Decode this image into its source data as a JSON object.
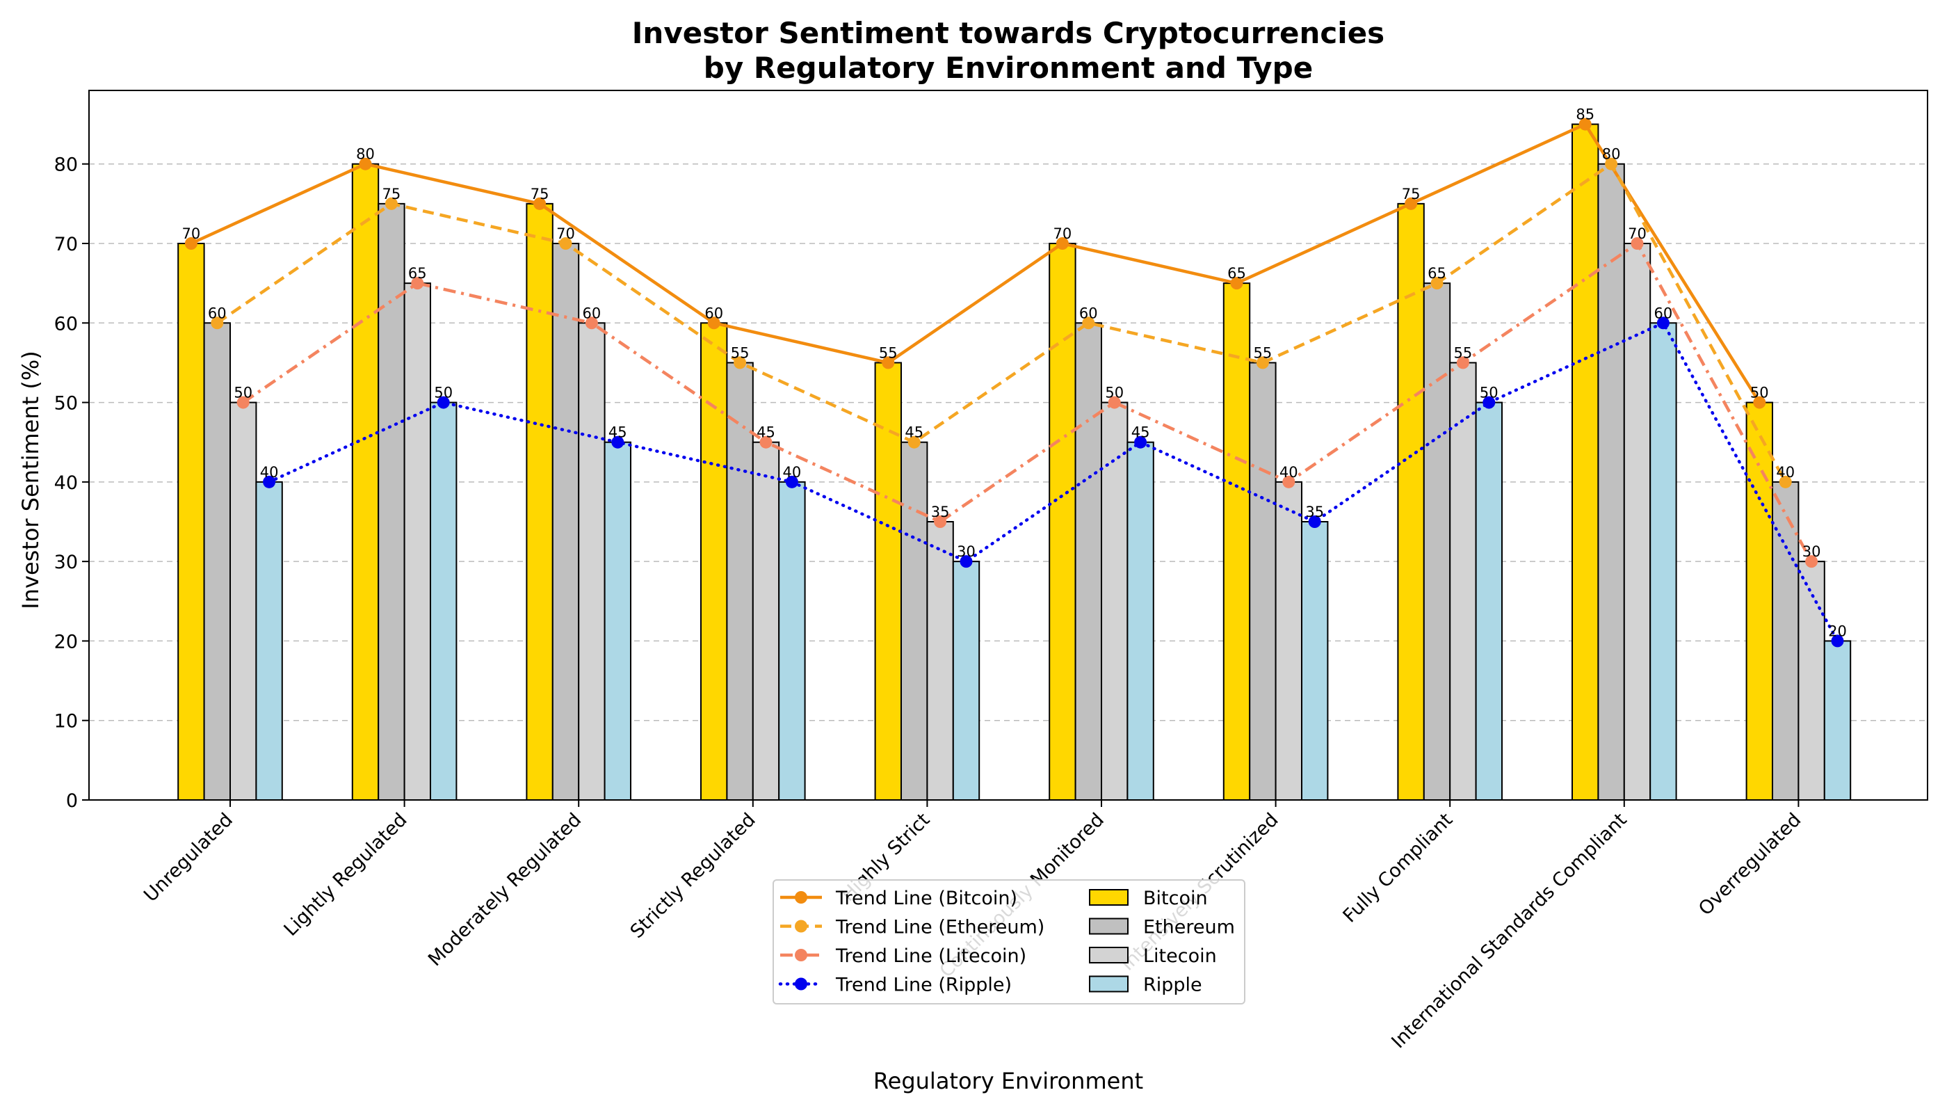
{
  "chart_data": {
    "type": "bar",
    "title_line1": "Investor Sentiment towards Cryptocurrencies",
    "title_line2": "by Regulatory Environment and Type",
    "xlabel": "Regulatory Environment",
    "ylabel": "Investor Sentiment (%)",
    "ylim": [
      0,
      89.25
    ],
    "yticks": [
      0,
      10,
      20,
      30,
      40,
      50,
      60,
      70,
      80
    ],
    "grid": true,
    "legend_position": "lower-center",
    "categories": [
      "Unregulated",
      "Lightly Regulated",
      "Moderately Regulated",
      "Strictly Regulated",
      "Highly Strict",
      "Continuously Monitored",
      "Intensively Scrutinized",
      "Fully Compliant",
      "International Standards Compliant",
      "Overregulated"
    ],
    "series": [
      {
        "name": "Bitcoin",
        "color": "#FFD700",
        "values": [
          70,
          80,
          75,
          60,
          55,
          70,
          65,
          75,
          85,
          50
        ]
      },
      {
        "name": "Ethereum",
        "color": "#C0C0C0",
        "values": [
          60,
          75,
          70,
          55,
          45,
          60,
          55,
          65,
          80,
          40
        ]
      },
      {
        "name": "Litecoin",
        "color": "#D3D3D3",
        "values": [
          50,
          65,
          60,
          45,
          35,
          50,
          40,
          55,
          70,
          30
        ]
      },
      {
        "name": "Ripple",
        "color": "#ADD8E6",
        "values": [
          40,
          50,
          45,
          40,
          30,
          45,
          35,
          50,
          60,
          20
        ]
      }
    ],
    "trend_lines": [
      {
        "name": "Trend Line (Bitcoin)",
        "color": "#F28C0F",
        "style": "solid",
        "series": 0
      },
      {
        "name": "Trend Line (Ethereum)",
        "color": "#F5A623",
        "style": "dashed",
        "series": 1
      },
      {
        "name": "Trend Line (Litecoin)",
        "color": "#F4845F",
        "style": "dashdot",
        "series": 2
      },
      {
        "name": "Trend Line (Ripple)",
        "color": "#0000EE",
        "style": "dotted",
        "series": 3
      }
    ]
  }
}
